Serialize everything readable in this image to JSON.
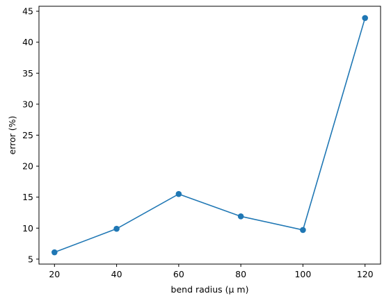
{
  "chart_data": {
    "type": "line",
    "title": "",
    "xlabel": "bend radius (μ m)",
    "ylabel": "error (%)",
    "x": [
      20,
      40,
      60,
      80,
      100,
      120
    ],
    "series": [
      {
        "values": [
          6.1,
          9.9,
          15.5,
          11.9,
          9.7,
          43.9
        ],
        "color": "#1f77b4",
        "marker": "circle"
      }
    ],
    "xlim": [
      15,
      125
    ],
    "ylim": [
      4.2,
      45.8
    ],
    "xticks": [
      20,
      40,
      60,
      80,
      100,
      120
    ],
    "yticks": [
      5,
      10,
      15,
      20,
      25,
      30,
      35,
      40,
      45
    ],
    "grid": false,
    "legend": "none"
  }
}
